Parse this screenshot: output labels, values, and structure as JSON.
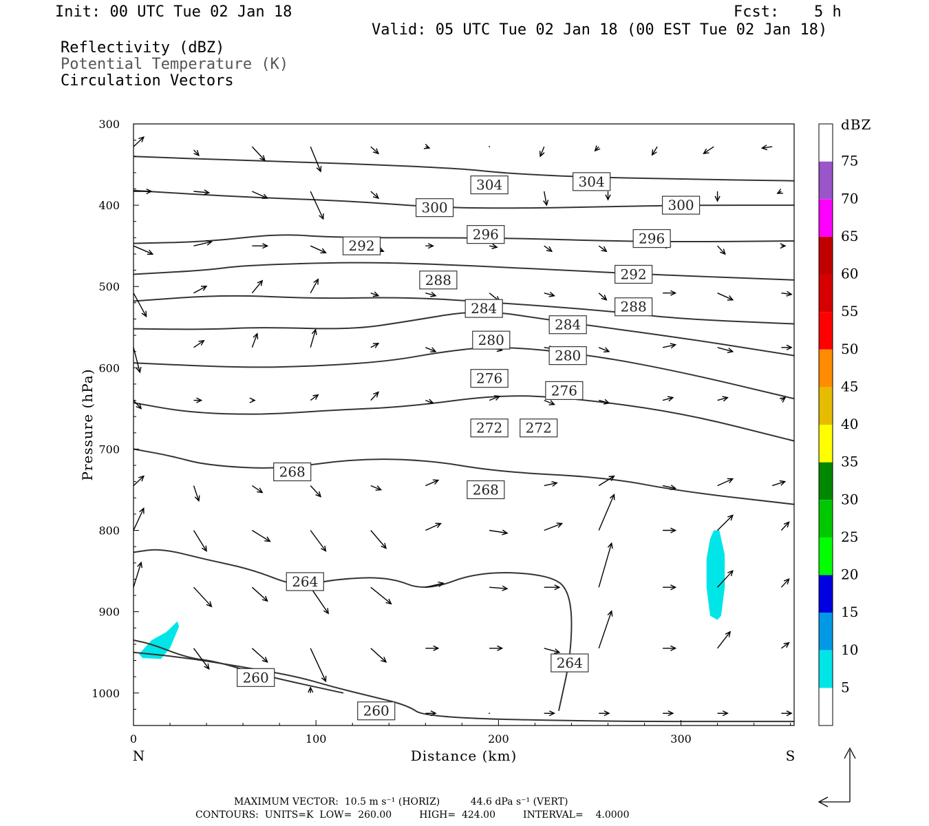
{
  "header": {
    "init": "Init: 00 UTC Tue 02 Jan 18",
    "fcst_label": "Fcst:",
    "fcst_value": "5 h",
    "valid": "Valid: 05 UTC Tue 02 Jan 18 (00 EST Tue 02 Jan 18)"
  },
  "legend_titles": [
    {
      "text": "Reflectivity (dBZ)",
      "color": "#000000"
    },
    {
      "text": "Potential Temperature (K)",
      "color": "#555555"
    },
    {
      "text": "Circulation Vectors",
      "color": "#000000"
    }
  ],
  "footer": {
    "max_vector": "MAXIMUM VECTOR:  10.5 m s⁻¹ (HORIZ)          44.6 dPa s⁻¹ (VERT)",
    "contours": "CONTOURS:  UNITS=K  LOW=  260.00         HIGH=  424.00         INTERVAL=    4.0000"
  },
  "chart_data": {
    "type": "contour",
    "xlabel": "Distance (km)",
    "ylabel": "Pressure (hPa)",
    "x_ticks": [
      0,
      100,
      200,
      300
    ],
    "y_ticks": [
      300,
      400,
      500,
      600,
      700,
      800,
      900,
      1000
    ],
    "xlim": [
      0,
      362
    ],
    "ylim": [
      300,
      1040
    ],
    "x_end_labels": {
      "left": "N",
      "right": "S"
    },
    "colorbar": {
      "title": "dBZ",
      "levels": [
        5,
        10,
        15,
        20,
        25,
        30,
        35,
        40,
        45,
        50,
        55,
        60,
        65,
        70,
        75
      ],
      "colors": [
        "#00e5e8",
        "#0099e6",
        "#0000e0",
        "#00ff00",
        "#00c800",
        "#008800",
        "#ffff00",
        "#e6bc00",
        "#ff8c00",
        "#ff0000",
        "#d60000",
        "#c00000",
        "#ff00ff",
        "#9955c9",
        "#ffffff"
      ]
    },
    "reflectivity_areas": [
      {
        "dbz": "5-10",
        "points": [
          [
            3,
            952
          ],
          [
            10,
            935
          ],
          [
            18,
            925
          ],
          [
            24,
            912
          ],
          [
            25,
            918
          ],
          [
            20,
            945
          ],
          [
            15,
            958
          ],
          [
            5,
            957
          ]
        ]
      },
      {
        "dbz": "5-10",
        "points": [
          [
            318,
            800
          ],
          [
            321,
            800
          ],
          [
            324,
            830
          ],
          [
            324,
            870
          ],
          [
            322,
            905
          ],
          [
            320,
            910
          ],
          [
            316,
            905
          ],
          [
            314,
            870
          ],
          [
            314,
            835
          ],
          [
            316,
            810
          ]
        ]
      }
    ],
    "theta_contours": [
      {
        "label": "304",
        "label_positions": [
          [
            195,
            375
          ],
          [
            251,
            371
          ]
        ],
        "points": [
          [
            0,
            340
          ],
          [
            60,
            345
          ],
          [
            120,
            349
          ],
          [
            180,
            355
          ],
          [
            200,
            360
          ],
          [
            240,
            365
          ],
          [
            300,
            368
          ],
          [
            362,
            370
          ]
        ]
      },
      {
        "label": "300",
        "label_positions": [
          [
            165,
            403
          ],
          [
            300,
            400
          ]
        ],
        "points": [
          [
            0,
            382
          ],
          [
            60,
            390
          ],
          [
            120,
            395
          ],
          [
            160,
            402
          ],
          [
            200,
            404
          ],
          [
            260,
            402
          ],
          [
            300,
            400
          ],
          [
            362,
            400
          ]
        ]
      },
      {
        "label": "296",
        "label_positions": [
          [
            193,
            436
          ],
          [
            284,
            441
          ]
        ],
        "points": [
          [
            0,
            447
          ],
          [
            40,
            445
          ],
          [
            80,
            435
          ],
          [
            110,
            440
          ],
          [
            200,
            440
          ],
          [
            260,
            444
          ],
          [
            300,
            445
          ],
          [
            362,
            444
          ]
        ]
      },
      {
        "label": "292",
        "label_positions": [
          [
            125,
            450
          ],
          [
            274,
            485
          ]
        ],
        "points": [
          [
            0,
            485
          ],
          [
            40,
            480
          ],
          [
            60,
            474
          ],
          [
            120,
            470
          ],
          [
            160,
            472
          ],
          [
            220,
            478
          ],
          [
            280,
            485
          ],
          [
            362,
            492
          ]
        ]
      },
      {
        "label": "288",
        "label_positions": [
          [
            167,
            492
          ],
          [
            274,
            525
          ]
        ],
        "points": [
          [
            0,
            518
          ],
          [
            50,
            510
          ],
          [
            100,
            515
          ],
          [
            150,
            513
          ],
          [
            200,
            520
          ],
          [
            260,
            530
          ],
          [
            300,
            540
          ],
          [
            362,
            546
          ]
        ]
      },
      {
        "label": "284",
        "label_positions": [
          [
            192,
            527
          ],
          [
            238,
            547
          ]
        ],
        "points": [
          [
            0,
            552
          ],
          [
            40,
            553
          ],
          [
            70,
            550
          ],
          [
            120,
            553
          ],
          [
            150,
            543
          ],
          [
            190,
            528
          ],
          [
            230,
            542
          ],
          [
            300,
            563
          ],
          [
            362,
            585
          ]
        ]
      },
      {
        "label": "280",
        "label_positions": [
          [
            196,
            566
          ],
          [
            238,
            585
          ]
        ],
        "points": [
          [
            0,
            594
          ],
          [
            60,
            600
          ],
          [
            100,
            598
          ],
          [
            140,
            592
          ],
          [
            170,
            580
          ],
          [
            200,
            573
          ],
          [
            250,
            584
          ],
          [
            300,
            605
          ],
          [
            362,
            638
          ]
        ]
      },
      {
        "label": "276",
        "label_positions": [
          [
            195,
            613
          ],
          [
            236,
            628
          ]
        ],
        "points": [
          [
            0,
            643
          ],
          [
            30,
            655
          ],
          [
            70,
            658
          ],
          [
            110,
            652
          ],
          [
            150,
            648
          ],
          [
            200,
            633
          ],
          [
            240,
            637
          ],
          [
            300,
            655
          ],
          [
            362,
            690
          ]
        ]
      },
      {
        "label": "272",
        "label_positions": [
          [
            195,
            674
          ],
          [
            222,
            674
          ]
        ],
        "points": [
          [
            0,
            700
          ],
          [
            20,
            708
          ],
          [
            40,
            720
          ],
          [
            80,
            725
          ],
          [
            120,
            712
          ],
          [
            160,
            713
          ],
          [
            200,
            728
          ],
          [
            260,
            735
          ],
          [
            300,
            752
          ],
          [
            362,
            768
          ]
        ]
      },
      {
        "label": "268",
        "label_positions": [
          [
            87,
            728
          ],
          [
            193,
            750
          ]
        ],
        "points": [
          [
            0,
            827
          ],
          [
            15,
            822
          ],
          [
            40,
            836
          ],
          [
            65,
            848
          ],
          [
            90,
            870
          ],
          [
            110,
            860
          ],
          [
            140,
            857
          ],
          [
            160,
            875
          ],
          [
            190,
            850
          ],
          [
            230,
            855
          ],
          [
            240,
            880
          ],
          [
            240,
            950
          ],
          [
            233,
            1022
          ]
        ]
      },
      {
        "label": "264",
        "label_positions": [
          [
            94,
            863
          ],
          [
            239,
            963
          ]
        ],
        "points": [
          [
            0,
            950
          ],
          [
            30,
            957
          ],
          [
            60,
            968
          ],
          [
            90,
            980
          ],
          [
            110,
            993
          ],
          [
            130,
            1004
          ],
          [
            150,
            1015
          ],
          [
            160,
            1030
          ],
          [
            250,
            1035
          ],
          [
            362,
            1035
          ]
        ]
      },
      {
        "label": "260",
        "label_positions": [
          [
            67,
            981
          ],
          [
            133,
            1022
          ]
        ],
        "points": [
          [
            0,
            935
          ],
          [
            10,
            940
          ],
          [
            30,
            957
          ],
          [
            45,
            961
          ],
          [
            70,
            978
          ],
          [
            115,
            1000
          ]
        ]
      }
    ],
    "circulation_vectors": [
      [
        0,
        328,
        8,
        -14
      ],
      [
        33,
        332,
        4,
        8
      ],
      [
        65,
        328,
        10,
        20
      ],
      [
        97,
        328,
        8,
        36
      ],
      [
        130,
        328,
        6,
        10
      ],
      [
        160,
        328,
        3,
        2
      ],
      [
        195,
        328,
        0,
        0
      ],
      [
        225,
        328,
        -3,
        14
      ],
      [
        255,
        328,
        -3,
        6
      ],
      [
        287,
        328,
        -4,
        12
      ],
      [
        318,
        328,
        -8,
        10
      ],
      [
        350,
        328,
        -8,
        2
      ],
      [
        0,
        383,
        14,
        0
      ],
      [
        33,
        383,
        12,
        2
      ],
      [
        65,
        383,
        12,
        10
      ],
      [
        97,
        383,
        10,
        40
      ],
      [
        130,
        383,
        6,
        10
      ],
      [
        225,
        383,
        2,
        20
      ],
      [
        260,
        383,
        0,
        12
      ],
      [
        320,
        383,
        0,
        14
      ],
      [
        355,
        383,
        -3,
        3
      ],
      [
        0,
        450,
        15,
        12
      ],
      [
        33,
        450,
        14,
        -6
      ],
      [
        65,
        450,
        12,
        0
      ],
      [
        97,
        450,
        12,
        10
      ],
      [
        130,
        450,
        10,
        8
      ],
      [
        160,
        450,
        6,
        0
      ],
      [
        195,
        450,
        6,
        2
      ],
      [
        225,
        450,
        6,
        8
      ],
      [
        255,
        450,
        6,
        8
      ],
      [
        290,
        450,
        6,
        0
      ],
      [
        320,
        450,
        6,
        12
      ],
      [
        355,
        450,
        3,
        0
      ],
      [
        0,
        508,
        10,
        34
      ],
      [
        33,
        508,
        10,
        -10
      ],
      [
        65,
        508,
        8,
        -18
      ],
      [
        97,
        508,
        6,
        -20
      ],
      [
        130,
        508,
        6,
        4
      ],
      [
        160,
        508,
        8,
        4
      ],
      [
        195,
        508,
        8,
        12
      ],
      [
        225,
        508,
        8,
        4
      ],
      [
        255,
        508,
        6,
        10
      ],
      [
        290,
        508,
        10,
        0
      ],
      [
        320,
        508,
        12,
        10
      ],
      [
        355,
        508,
        8,
        2
      ],
      [
        0,
        575,
        5,
        36
      ],
      [
        33,
        575,
        8,
        -10
      ],
      [
        65,
        575,
        4,
        -20
      ],
      [
        97,
        575,
        4,
        -26
      ],
      [
        130,
        575,
        6,
        -6
      ],
      [
        160,
        575,
        8,
        6
      ],
      [
        195,
        575,
        10,
        4
      ],
      [
        225,
        575,
        8,
        2
      ],
      [
        255,
        575,
        8,
        6
      ],
      [
        290,
        575,
        10,
        -4
      ],
      [
        320,
        575,
        12,
        6
      ],
      [
        355,
        575,
        8,
        0
      ],
      [
        0,
        640,
        6,
        12
      ],
      [
        33,
        640,
        6,
        0
      ],
      [
        65,
        640,
        2,
        0
      ],
      [
        97,
        640,
        6,
        -8
      ],
      [
        130,
        640,
        6,
        -12
      ],
      [
        160,
        640,
        6,
        4
      ],
      [
        195,
        640,
        8,
        -6
      ],
      [
        225,
        640,
        8,
        6
      ],
      [
        255,
        640,
        8,
        4
      ],
      [
        290,
        640,
        8,
        -4
      ],
      [
        320,
        640,
        8,
        -4
      ],
      [
        355,
        640,
        3,
        -4
      ],
      [
        0,
        745,
        8,
        -14
      ],
      [
        33,
        745,
        4,
        22
      ],
      [
        65,
        745,
        8,
        10
      ],
      [
        97,
        745,
        8,
        16
      ],
      [
        130,
        745,
        8,
        6
      ],
      [
        160,
        745,
        10,
        -8
      ],
      [
        195,
        745,
        10,
        0
      ],
      [
        225,
        745,
        10,
        -4
      ],
      [
        255,
        745,
        12,
        -14
      ],
      [
        290,
        745,
        10,
        4
      ],
      [
        320,
        745,
        12,
        -10
      ],
      [
        350,
        745,
        10,
        -6
      ],
      [
        0,
        800,
        8,
        -32
      ],
      [
        33,
        800,
        10,
        30
      ],
      [
        65,
        800,
        14,
        16
      ],
      [
        97,
        800,
        12,
        30
      ],
      [
        130,
        800,
        12,
        26
      ],
      [
        160,
        800,
        12,
        -10
      ],
      [
        195,
        800,
        14,
        4
      ],
      [
        225,
        800,
        14,
        -10
      ],
      [
        255,
        800,
        12,
        -52
      ],
      [
        290,
        800,
        10,
        0
      ],
      [
        320,
        800,
        12,
        -22
      ],
      [
        355,
        800,
        6,
        -12
      ],
      [
        0,
        870,
        6,
        -36
      ],
      [
        33,
        870,
        14,
        28
      ],
      [
        65,
        870,
        12,
        20
      ],
      [
        97,
        870,
        14,
        38
      ],
      [
        130,
        870,
        16,
        24
      ],
      [
        160,
        870,
        14,
        -6
      ],
      [
        195,
        870,
        14,
        2
      ],
      [
        225,
        870,
        12,
        0
      ],
      [
        255,
        870,
        10,
        -64
      ],
      [
        290,
        870,
        10,
        0
      ],
      [
        320,
        870,
        12,
        -24
      ],
      [
        355,
        870,
        6,
        -12
      ],
      [
        33,
        945,
        12,
        30
      ],
      [
        65,
        945,
        12,
        20
      ],
      [
        97,
        945,
        12,
        48
      ],
      [
        130,
        945,
        12,
        20
      ],
      [
        160,
        945,
        10,
        0
      ],
      [
        195,
        945,
        10,
        0
      ],
      [
        225,
        945,
        12,
        6
      ],
      [
        255,
        945,
        10,
        -54
      ],
      [
        290,
        945,
        10,
        0
      ],
      [
        320,
        945,
        10,
        -24
      ],
      [
        355,
        945,
        6,
        -8
      ],
      [
        97,
        1000,
        0,
        -8
      ],
      [
        160,
        1025,
        8,
        0
      ],
      [
        195,
        1025,
        0,
        0
      ],
      [
        225,
        1025,
        8,
        0
      ],
      [
        255,
        1025,
        8,
        0
      ],
      [
        290,
        1025,
        8,
        0
      ],
      [
        320,
        1025,
        8,
        0
      ],
      [
        355,
        1025,
        8,
        0
      ]
    ]
  }
}
